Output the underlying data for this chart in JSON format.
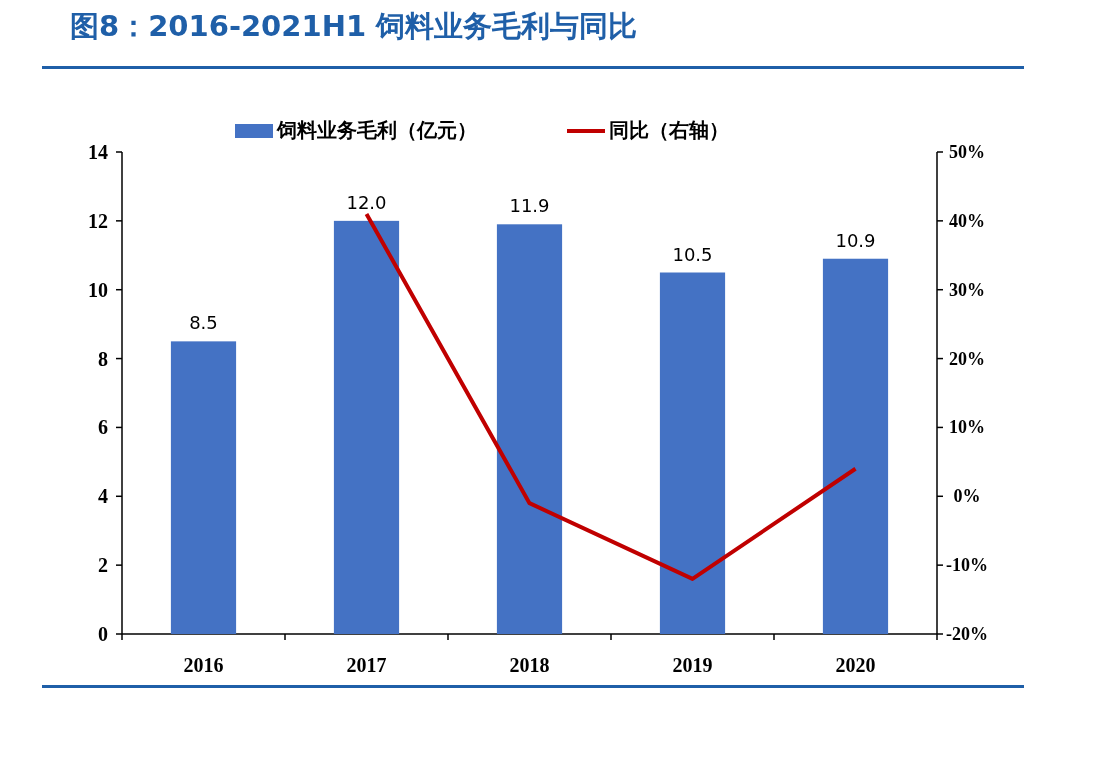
{
  "chart_data": {
    "type": "bar",
    "title": "图8：2016-2021H1 饲料业务毛利与同比",
    "categories": [
      "2016",
      "2017",
      "2018",
      "2019",
      "2020"
    ],
    "series": [
      {
        "name": "饲料业务毛利（亿元）",
        "color": "#4472c4",
        "values": [
          8.5,
          12.0,
          11.9,
          10.5,
          10.9
        ],
        "value_labels": [
          "8.5",
          "12.0",
          "11.9",
          "10.5",
          "10.9"
        ]
      },
      {
        "name": "同比（右轴）",
        "type": "line",
        "axis": "y2",
        "color": "#c00000",
        "values": [
          null,
          41,
          -1,
          -12,
          4
        ]
      }
    ],
    "ylim": [
      0,
      14
    ],
    "yticks": [
      0,
      2,
      4,
      6,
      8,
      10,
      12,
      14
    ],
    "y2lim": [
      -20,
      50
    ],
    "y2ticks": [
      {
        "value": -20,
        "label": "-20%"
      },
      {
        "value": -10,
        "label": "-10%"
      },
      {
        "value": 0,
        "label": "0%"
      },
      {
        "value": 10,
        "label": "10%"
      },
      {
        "value": 20,
        "label": "20%"
      },
      {
        "value": 30,
        "label": "30%"
      },
      {
        "value": 40,
        "label": "40%"
      },
      {
        "value": 50,
        "label": "50%"
      }
    ],
    "legend": "top",
    "grid": false,
    "marker": "none",
    "line_style": "solid"
  }
}
